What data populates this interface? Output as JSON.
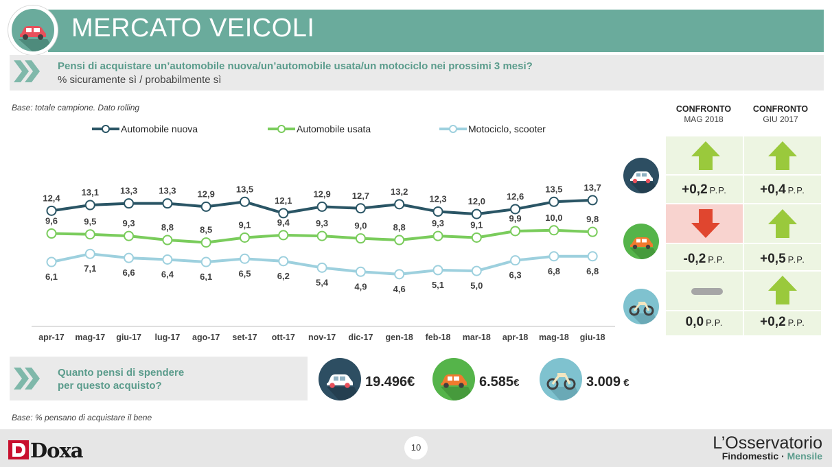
{
  "header": {
    "title": "MERCATO VEICOLI"
  },
  "question": {
    "text": "Pensi di acquistare un’automobile nuova/un’automobile usata/un motociclo nei prossimi 3 mesi?",
    "sub": "% sicuramente sì / probabilmente sì"
  },
  "base_note": "Base: totale campione. Dato rolling",
  "base_note2": "Base: % pensano di acquistare il bene",
  "chart_data": {
    "type": "line",
    "categories": [
      "apr-17",
      "mag-17",
      "giu-17",
      "lug-17",
      "ago-17",
      "set-17",
      "ott-17",
      "nov-17",
      "dic-17",
      "gen-18",
      "feb-18",
      "mar-18",
      "apr-18",
      "mag-18",
      "giu-18"
    ],
    "series": [
      {
        "name": "Automobile nuova",
        "color": "#2a5565",
        "labels": [
          "12,4",
          "13,1",
          "13,3",
          "13,3",
          "12,9",
          "13,5",
          "12,1",
          "12,9",
          "12,7",
          "13,2",
          "12,3",
          "12,0",
          "12,6",
          "13,5",
          "13,7"
        ],
        "values": [
          12.4,
          13.1,
          13.3,
          13.3,
          12.9,
          13.5,
          12.1,
          12.9,
          12.7,
          13.2,
          12.3,
          12.0,
          12.6,
          13.5,
          13.7
        ]
      },
      {
        "name": "Automobile usata",
        "color": "#7acc5c",
        "labels": [
          "9,6",
          "9,5",
          "9,3",
          "8,8",
          "8,5",
          "9,1",
          "9,4",
          "9,3",
          "9,0",
          "8,8",
          "9,3",
          "9,1",
          "9,9",
          "10,0",
          "9,8"
        ],
        "values": [
          9.6,
          9.5,
          9.3,
          8.8,
          8.5,
          9.1,
          9.4,
          9.3,
          9.0,
          8.8,
          9.3,
          9.1,
          9.9,
          10.0,
          9.8
        ]
      },
      {
        "name": "Motociclo, scooter",
        "color": "#9dd0de",
        "labels": [
          "6,1",
          "7,1",
          "6,6",
          "6,4",
          "6,1",
          "6,5",
          "6,2",
          "5,4",
          "4,9",
          "4,6",
          "5,1",
          "5,0",
          "6,3",
          "6,8",
          "6,8"
        ],
        "values": [
          6.1,
          7.1,
          6.6,
          6.4,
          6.1,
          6.5,
          6.2,
          5.4,
          4.9,
          4.6,
          5.1,
          5.0,
          6.3,
          6.8,
          6.8
        ]
      }
    ],
    "legend_position": "top",
    "grid": false
  },
  "confronto": {
    "headers": [
      {
        "title": "CONFRONTO",
        "sub": "MAG 2018"
      },
      {
        "title": "CONFRONTO",
        "sub": "GIU 2017"
      }
    ],
    "unit": "P.P.",
    "rows": [
      {
        "vehicle": "car-new-icon",
        "cells": [
          {
            "value": "+0,2",
            "trend": "up"
          },
          {
            "value": "+0,4",
            "trend": "up"
          }
        ]
      },
      {
        "vehicle": "car-used-icon",
        "cells": [
          {
            "value": "-0,2",
            "trend": "down"
          },
          {
            "value": "+0,5",
            "trend": "up"
          }
        ]
      },
      {
        "vehicle": "motorcycle-icon",
        "cells": [
          {
            "value": "0,0",
            "trend": "flat"
          },
          {
            "value": "+0,2",
            "trend": "up"
          }
        ]
      }
    ],
    "colors": {
      "up": "#9ac93c",
      "down": "#e0462f",
      "flat": "#a6a6a6"
    }
  },
  "spend": {
    "question_line1": "Quanto pensi di spendere",
    "question_line2": "per questo acquisto?",
    "items": [
      {
        "icon": "car-new-icon",
        "amount": "19.496",
        "currency": "€"
      },
      {
        "icon": "car-used-icon",
        "amount": "6.585",
        "currency": "€"
      },
      {
        "icon": "motorcycle-icon",
        "amount": "3.009",
        "currency": " €"
      }
    ]
  },
  "footer": {
    "page": "10",
    "brand": "Doxa",
    "observatory": "L’Osservatorio",
    "sub1": "Findomestic · ",
    "sub2": "Mensile"
  }
}
